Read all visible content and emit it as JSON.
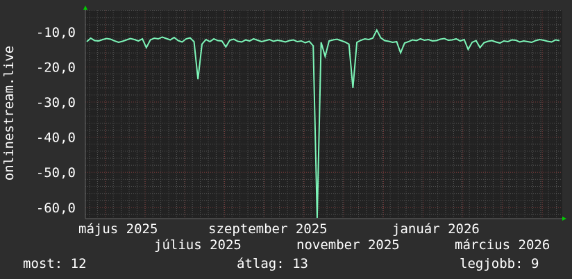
{
  "chart_data": {
    "type": "line",
    "ylabel": "onlinestream.live",
    "ylim": [
      -63.2,
      -3.9
    ],
    "y_ticks": [
      -10,
      -20,
      -30,
      -40,
      -50,
      -60
    ],
    "y_tick_labels": [
      "-10,0",
      "-20,0",
      "-30,0",
      "-40,0",
      "-50,0",
      "-60,0"
    ],
    "x_tick_labels": [
      "május 2025",
      "július 2025",
      "szeptember 2025",
      "november 2025",
      "január 2026",
      "március 2026"
    ],
    "grid": true,
    "line_color": "#7df5b8",
    "values": [
      -12.8,
      -11.8,
      -12.5,
      -12.6,
      -12.2,
      -11.9,
      -12.1,
      -12.6,
      -13.0,
      -12.7,
      -12.3,
      -11.9,
      -12.2,
      -12.6,
      -12.0,
      -14.5,
      -12.3,
      -11.8,
      -12.0,
      -11.5,
      -11.9,
      -12.3,
      -11.6,
      -12.5,
      -12.9,
      -12.0,
      -11.7,
      -12.8,
      -23.5,
      -13.5,
      -12.2,
      -12.8,
      -12.0,
      -12.5,
      -12.6,
      -14.3,
      -12.4,
      -12.1,
      -12.7,
      -12.9,
      -12.3,
      -12.6,
      -12.0,
      -12.4,
      -12.8,
      -12.5,
      -12.2,
      -12.7,
      -12.4,
      -12.6,
      -12.9,
      -12.5,
      -12.3,
      -12.8,
      -12.6,
      -13.1,
      -12.7,
      -14.0,
      -63.0,
      -13.0,
      -17.0,
      -12.6,
      -12.3,
      -12.1,
      -12.5,
      -12.9,
      -13.5,
      -26.0,
      -13.0,
      -12.4,
      -12.0,
      -12.2,
      -11.8,
      -9.5,
      -11.7,
      -12.5,
      -12.7,
      -13.0,
      -12.8,
      -16.0,
      -13.2,
      -12.8,
      -12.3,
      -12.5,
      -12.0,
      -12.4,
      -12.2,
      -12.6,
      -12.5,
      -12.1,
      -11.9,
      -12.4,
      -12.3,
      -12.0,
      -12.6,
      -12.2,
      -15.0,
      -13.0,
      -12.5,
      -14.5,
      -13.1,
      -12.7,
      -12.5,
      -12.9,
      -13.2,
      -12.6,
      -12.8,
      -12.3,
      -12.4,
      -12.9,
      -12.6,
      -12.8,
      -13.0,
      -12.5,
      -12.2,
      -12.4,
      -12.7,
      -12.9,
      -12.3,
      -12.5
    ]
  },
  "legend": {
    "current": "most: 12",
    "average": "átlag: 13",
    "max": "legjobb: 9"
  }
}
